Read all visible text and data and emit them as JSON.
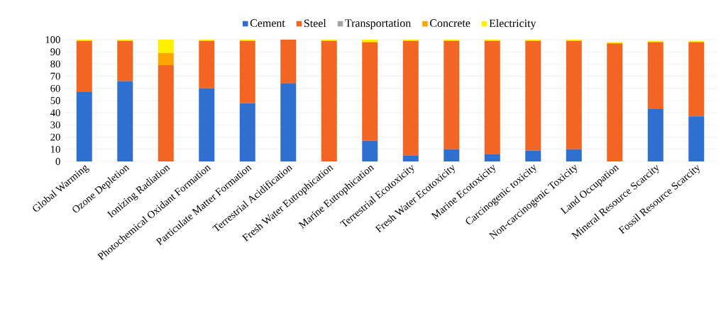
{
  "chart_data": {
    "type": "bar",
    "stacked": true,
    "categories": [
      "Global Warming",
      "Ozone Depletion",
      "Ionizing Radiation",
      "Photochemical Oxidant Formation",
      "Particulate Matter Formation",
      "Terrestrial Acidification",
      "Fresh Water Eutrophication",
      "Marine Eutrophication",
      "Terrestrial Ecotoxicity",
      "Fresh Water Ecotoxicity",
      "Marine Ecotoxicity",
      "Carcinogenic toxicity",
      "Non-carcinogenic Toxicity",
      "Land Occupation",
      "Mineral Resource Scarcity",
      "Fossil Resource Scarcity"
    ],
    "series": [
      {
        "name": "Cement",
        "color": "#2e6fd0",
        "values": [
          57,
          66,
          0,
          60,
          48,
          64,
          0,
          17,
          5,
          10,
          6,
          9,
          10,
          0,
          43,
          37
        ]
      },
      {
        "name": "Steel",
        "color": "#f26522",
        "values": [
          42,
          33,
          79,
          39,
          51,
          36,
          99,
          81,
          94,
          89,
          93,
          90,
          89,
          97,
          55,
          61
        ]
      },
      {
        "name": "Transportation",
        "color": "#a5a5a5",
        "values": [
          0,
          0,
          0,
          0,
          0,
          0,
          0,
          0,
          0,
          0,
          0,
          0,
          0,
          0,
          0,
          0
        ]
      },
      {
        "name": "Concrete",
        "color": "#ffa500",
        "values": [
          0,
          0,
          10,
          0,
          0,
          0,
          0,
          0,
          0,
          0,
          0,
          0,
          0,
          0,
          0,
          0
        ]
      },
      {
        "name": "Electricity",
        "color": "#ffee00",
        "values": [
          1,
          1,
          11,
          1,
          1,
          0,
          1,
          2,
          1,
          1,
          1,
          1,
          1,
          1,
          1,
          1
        ]
      }
    ],
    "ylim": [
      0,
      100
    ],
    "yticks": [
      0,
      10,
      20,
      30,
      40,
      50,
      60,
      70,
      80,
      90,
      100
    ],
    "grid": "y",
    "legend": "top"
  }
}
